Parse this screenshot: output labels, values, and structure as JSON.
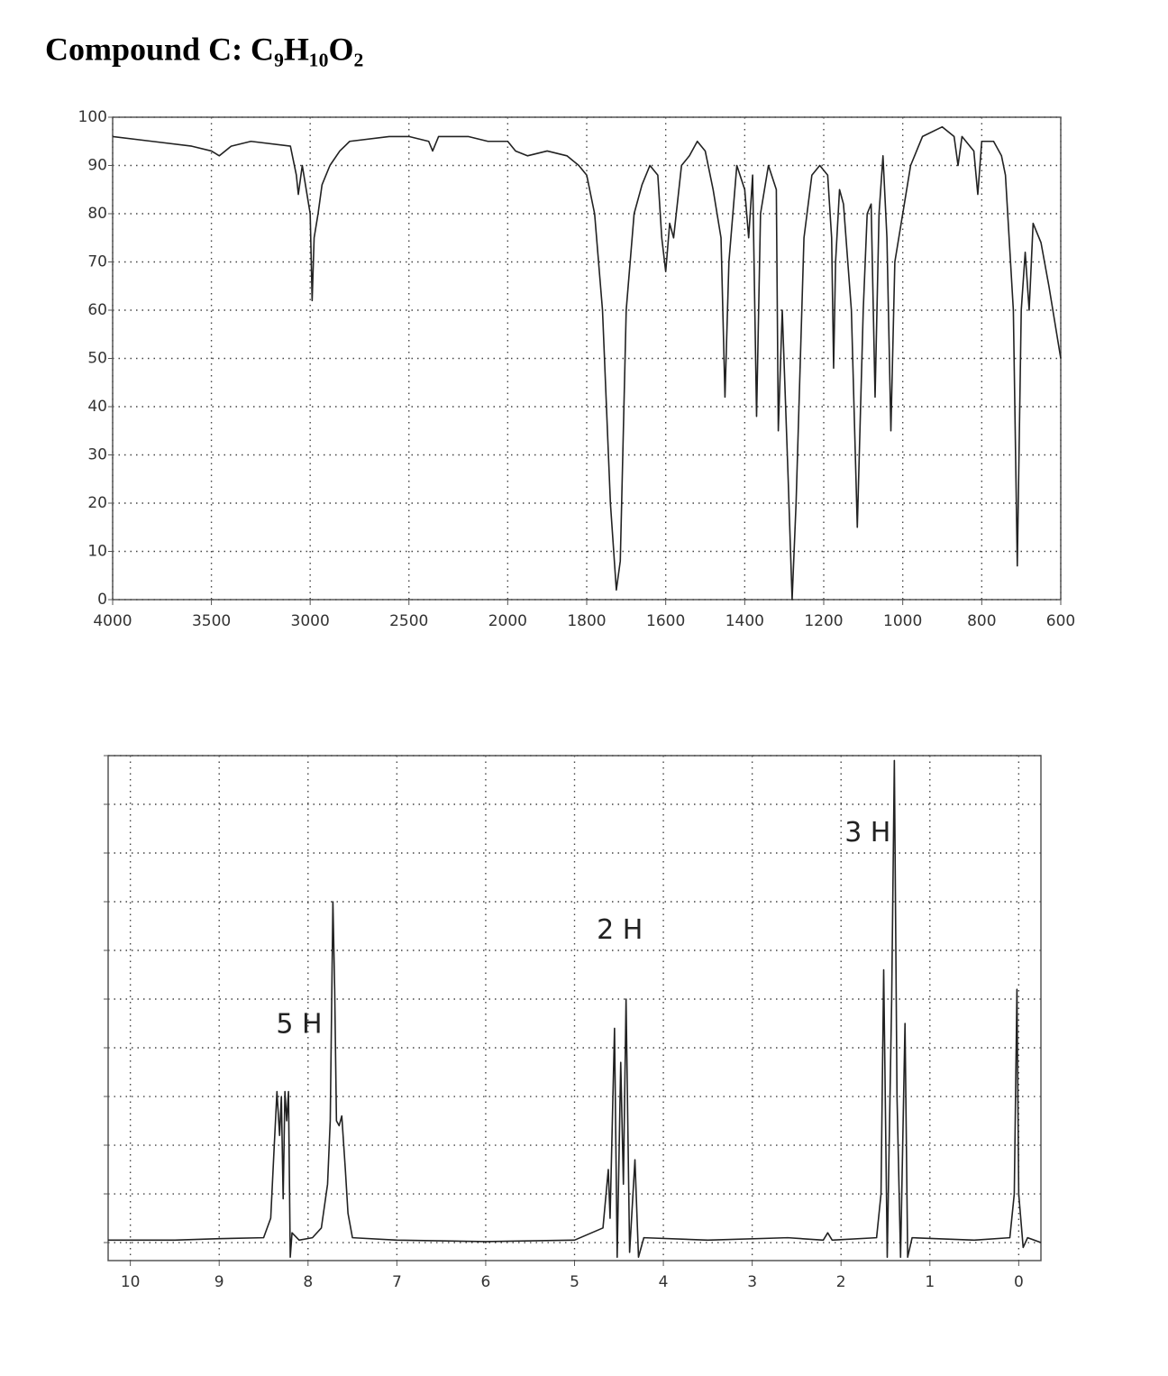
{
  "title": "Compound C: C₉H₁₀O₂",
  "chart_data": [
    {
      "type": "line",
      "color": "#222222",
      "grid": true,
      "ytick_labels": true,
      "xlim": [
        4000,
        600
      ],
      "ylim": [
        0,
        100
      ],
      "xticks": [
        4000,
        3500,
        3000,
        2500,
        2000,
        1800,
        1600,
        1400,
        1200,
        1000,
        800,
        600
      ],
      "yticks": [
        0,
        10,
        20,
        30,
        40,
        50,
        60,
        70,
        80,
        90,
        100
      ],
      "x": [
        4000,
        3800,
        3600,
        3500,
        3460,
        3400,
        3300,
        3100,
        3070,
        3060,
        3040,
        3000,
        2990,
        2980,
        2960,
        2940,
        2900,
        2850,
        2800,
        2600,
        2500,
        2400,
        2380,
        2350,
        2200,
        2100,
        2000,
        1980,
        1950,
        1900,
        1850,
        1820,
        1800,
        1780,
        1760,
        1740,
        1725,
        1715,
        1700,
        1680,
        1660,
        1640,
        1620,
        1610,
        1600,
        1590,
        1580,
        1560,
        1540,
        1520,
        1500,
        1480,
        1460,
        1450,
        1440,
        1420,
        1400,
        1390,
        1380,
        1370,
        1360,
        1340,
        1320,
        1315,
        1305,
        1290,
        1280,
        1270,
        1250,
        1230,
        1210,
        1190,
        1180,
        1175,
        1170,
        1160,
        1150,
        1130,
        1115,
        1100,
        1090,
        1080,
        1070,
        1060,
        1050,
        1040,
        1030,
        1020,
        1010,
        1000,
        980,
        950,
        900,
        870,
        860,
        850,
        820,
        810,
        800,
        770,
        750,
        740,
        720,
        710,
        700,
        690,
        680,
        670,
        650,
        630,
        600
      ],
      "values": [
        96,
        95,
        94,
        93,
        92,
        94,
        95,
        94,
        88,
        84,
        90,
        80,
        62,
        75,
        80,
        86,
        90,
        93,
        95,
        96,
        96,
        95,
        93,
        96,
        96,
        95,
        95,
        93,
        92,
        93,
        92,
        90,
        88,
        80,
        60,
        20,
        2,
        8,
        60,
        80,
        86,
        90,
        88,
        75,
        68,
        78,
        75,
        90,
        92,
        95,
        93,
        85,
        75,
        42,
        70,
        90,
        85,
        75,
        88,
        38,
        80,
        90,
        85,
        35,
        60,
        25,
        0,
        20,
        75,
        88,
        90,
        88,
        75,
        48,
        70,
        85,
        82,
        60,
        15,
        60,
        80,
        82,
        42,
        80,
        92,
        75,
        35,
        70,
        75,
        80,
        90,
        96,
        98,
        96,
        90,
        96,
        93,
        84,
        95,
        95,
        92,
        88,
        60,
        7,
        60,
        72,
        60,
        78,
        74,
        65,
        50
      ]
    },
    {
      "type": "line",
      "color": "#222222",
      "grid": true,
      "ytick_labels": false,
      "xlim": [
        10.25,
        -0.25
      ],
      "ylim": [
        -0.37,
        10
      ],
      "xticks": [
        10,
        9,
        8,
        7,
        6,
        5,
        4,
        3,
        2,
        1,
        0
      ],
      "yticks": [
        0,
        1,
        2,
        3,
        4,
        5,
        6,
        7,
        8,
        9,
        10
      ],
      "x": [
        10.25,
        9.5,
        9,
        8.5,
        8.42,
        8.38,
        8.35,
        8.32,
        8.3,
        8.28,
        8.26,
        8.24,
        8.22,
        8.2,
        8.18,
        8.1,
        7.95,
        7.85,
        7.78,
        7.75,
        7.72,
        7.7,
        7.68,
        7.65,
        7.62,
        7.58,
        7.55,
        7.5,
        7,
        6,
        5,
        4.68,
        4.62,
        4.6,
        4.55,
        4.52,
        4.48,
        4.45,
        4.42,
        4.38,
        4.32,
        4.28,
        4.22,
        3.5,
        2.6,
        2.2,
        2.15,
        2.1,
        1.6,
        1.55,
        1.52,
        1.48,
        1.43,
        1.4,
        1.37,
        1.33,
        1.28,
        1.25,
        1.2,
        0.5,
        0.1,
        0.05,
        0.02,
        0,
        -0.05,
        -0.1,
        -0.25
      ],
      "values": [
        0.05,
        0.05,
        0.08,
        0.1,
        0.5,
        2.0,
        3.1,
        2.2,
        3.0,
        0.9,
        3.1,
        2.5,
        3.1,
        -0.3,
        0.2,
        0.05,
        0.1,
        0.3,
        1.2,
        2.5,
        7.0,
        5.2,
        2.5,
        2.4,
        2.6,
        1.5,
        0.6,
        0.1,
        0.05,
        0.02,
        0.05,
        0.3,
        1.5,
        0.5,
        4.4,
        -0.3,
        3.7,
        1.2,
        5.0,
        -0.2,
        1.7,
        -0.3,
        0.1,
        0.05,
        0.1,
        0.05,
        0.2,
        0.05,
        0.1,
        1.0,
        5.6,
        -0.3,
        5.0,
        9.9,
        3.0,
        -0.3,
        4.5,
        -0.3,
        0.1,
        0.05,
        0.1,
        1.0,
        5.2,
        1.0,
        -0.1,
        0.1,
        0
      ],
      "annotations": [
        {
          "text": "5 H",
          "x": 8.1,
          "y": 4.46
        },
        {
          "text": "2 H",
          "x": 4.49,
          "y": 6.4
        },
        {
          "text": "3 H",
          "x": 1.7,
          "y": 8.4
        }
      ]
    }
  ]
}
